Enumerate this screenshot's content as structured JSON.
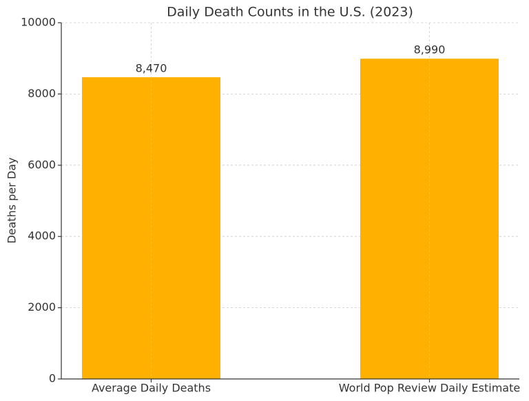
{
  "chart_data": {
    "type": "bar",
    "title": "Daily Death Counts in the U.S. (2023)",
    "y_label": "Deaths per Day",
    "categories": [
      "Average Daily Deaths",
      "World Pop Review Daily Estimate"
    ],
    "values": [
      8470,
      8990
    ],
    "value_labels": [
      "8,470",
      "8,990"
    ],
    "color": "#ffb000",
    "ylim": [
      0,
      10000
    ],
    "yticks": [
      0,
      2000,
      4000,
      6000,
      8000,
      10000
    ],
    "grid": true
  }
}
